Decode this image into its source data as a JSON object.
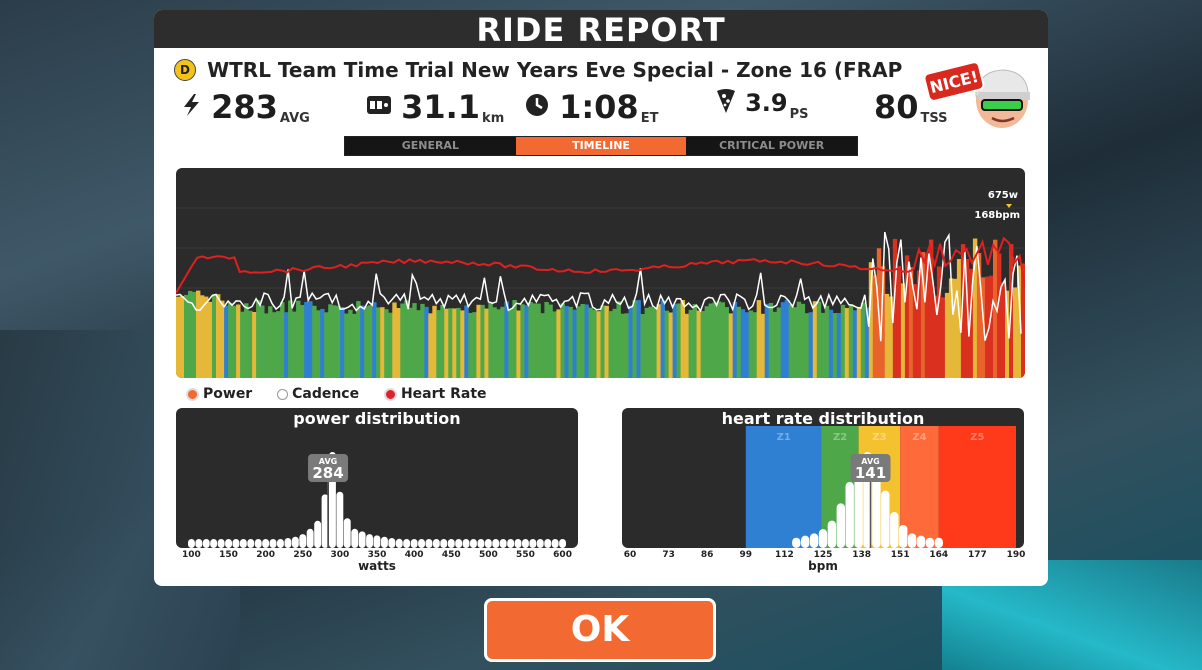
{
  "header": {
    "title": "RIDE REPORT"
  },
  "ride": {
    "badge": "D",
    "title": "WTRL Team Time Trial New Years Eve Special - Zone 16 (FRAP"
  },
  "stats": {
    "power": {
      "value": "283",
      "unit": "AVG",
      "icon": "lightning-icon"
    },
    "distance": {
      "value": "31.1",
      "unit": "km",
      "icon": "odometer-icon"
    },
    "time": {
      "value": "1:08",
      "unit": "ET",
      "icon": "clock-icon"
    },
    "pizza": {
      "value": "3.9",
      "unit": "PS",
      "icon": "pizza-icon"
    },
    "tss": {
      "value": "80",
      "unit": "TSS"
    }
  },
  "avatar": {
    "label": "NICE!"
  },
  "tabs": [
    {
      "label": "GENERAL",
      "active": false
    },
    {
      "label": "TIMELINE",
      "active": true
    },
    {
      "label": "CRITICAL POWER",
      "active": false
    }
  ],
  "timeline": {
    "peak_power": "675w",
    "peak_hr": "168bpm"
  },
  "legend": {
    "power": "Power",
    "cadence": "Cadence",
    "heart_rate": "Heart Rate"
  },
  "colors": {
    "accent": "#f26a32",
    "hr_line": "#e02020",
    "z1": "#888888",
    "z2": "#2f7fd3",
    "z3": "#4ea84a",
    "z4": "#e6b83a",
    "z5": "#e8642c",
    "z6": "#d9301f"
  },
  "chart_data": [
    {
      "type": "bar",
      "title": "power distribution",
      "xlabel": "watts",
      "ticks": [
        "100",
        "150",
        "200",
        "250",
        "300",
        "350",
        "400",
        "450",
        "500",
        "550",
        "600"
      ],
      "x": [
        100,
        110,
        120,
        130,
        140,
        150,
        160,
        170,
        180,
        190,
        200,
        210,
        220,
        230,
        240,
        250,
        260,
        270,
        280,
        290,
        300,
        310,
        320,
        330,
        340,
        350,
        360,
        370,
        380,
        390,
        400,
        410,
        420,
        430,
        440,
        450,
        460,
        470,
        480,
        490,
        500,
        510,
        520,
        530,
        540,
        550,
        560,
        570,
        580,
        590,
        600
      ],
      "values": [
        1,
        1,
        1,
        1,
        1,
        1,
        1,
        1,
        1,
        1,
        1,
        1,
        1,
        1.5,
        2,
        3,
        5,
        8,
        18,
        34,
        19,
        9,
        5,
        4,
        3,
        2.5,
        2,
        1.5,
        1.2,
        1,
        1,
        1,
        1,
        1,
        1,
        1,
        1,
        1,
        1,
        1,
        1,
        1,
        1,
        1,
        1,
        1,
        1,
        1,
        1,
        1,
        1
      ],
      "avg": {
        "label": "AVG",
        "value": "284"
      },
      "xlim": [
        90,
        610
      ]
    },
    {
      "type": "bar",
      "title": "heart rate distribution",
      "xlabel": "bpm",
      "ticks": [
        "60",
        "73",
        "86",
        "99",
        "112",
        "125",
        "138",
        "151",
        "164",
        "177",
        "190"
      ],
      "zones": [
        {
          "name": "Z1",
          "from": 99,
          "to": 124.5,
          "color": "#2f7fd3"
        },
        {
          "name": "Z2",
          "from": 124.5,
          "to": 137,
          "color": "#4ea84a"
        },
        {
          "name": "Z3",
          "from": 137,
          "to": 151,
          "color": "#f5c22f"
        },
        {
          "name": "Z4",
          "from": 151,
          "to": 164,
          "color": "#ff6a3a"
        },
        {
          "name": "Z5",
          "from": 164,
          "to": 190,
          "color": "#ff3a1a"
        }
      ],
      "x": [
        116,
        119,
        122,
        125,
        128,
        131,
        134,
        137,
        140,
        143,
        146,
        149,
        152,
        155,
        158,
        161,
        164
      ],
      "values": [
        1,
        1.5,
        2,
        3,
        5,
        9,
        14,
        20,
        21,
        17,
        12,
        7,
        4,
        2,
        1.5,
        1,
        1
      ],
      "avg": {
        "label": "AVG",
        "value": "141"
      },
      "xlim": [
        60,
        190
      ]
    }
  ]
}
